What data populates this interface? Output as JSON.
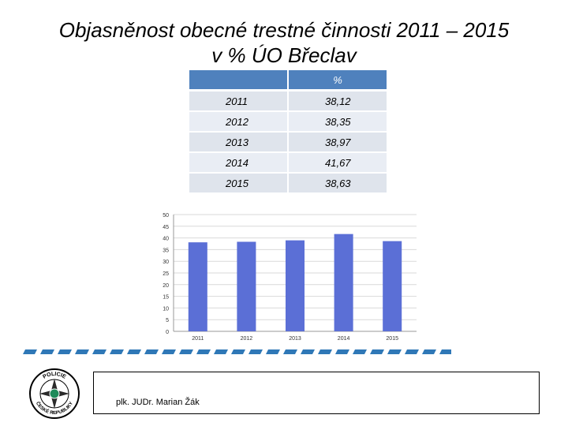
{
  "slide": {
    "title_line1": "Objasněnost obecné trestné činnosti 2011 – 2015",
    "title_line2": "v % ÚO Břeclav",
    "footer": "plk. JUDr. Marian Žák"
  },
  "table": {
    "header": [
      "",
      "%"
    ],
    "rows": [
      [
        "2011",
        "38,12"
      ],
      [
        "2012",
        "38,35"
      ],
      [
        "2013",
        "38,97"
      ],
      [
        "2014",
        "41,67"
      ],
      [
        "2015",
        "38,63"
      ]
    ]
  },
  "logo": {
    "icon": "police-badge-icon",
    "text_top": "POLICIE",
    "text_bottom": "ČESKÉ REPUBLIKY"
  },
  "chart_data": {
    "type": "bar",
    "categories": [
      "2011",
      "2012",
      "2013",
      "2014",
      "2015"
    ],
    "values": [
      38.12,
      38.35,
      38.97,
      41.67,
      38.63
    ],
    "ylim": [
      0,
      50
    ],
    "yticks": [
      0,
      5,
      10,
      15,
      20,
      25,
      30,
      35,
      40,
      45,
      50
    ],
    "grid": true,
    "bar_color": "#5b6fd6",
    "title": "",
    "xlabel": "",
    "ylabel": ""
  }
}
